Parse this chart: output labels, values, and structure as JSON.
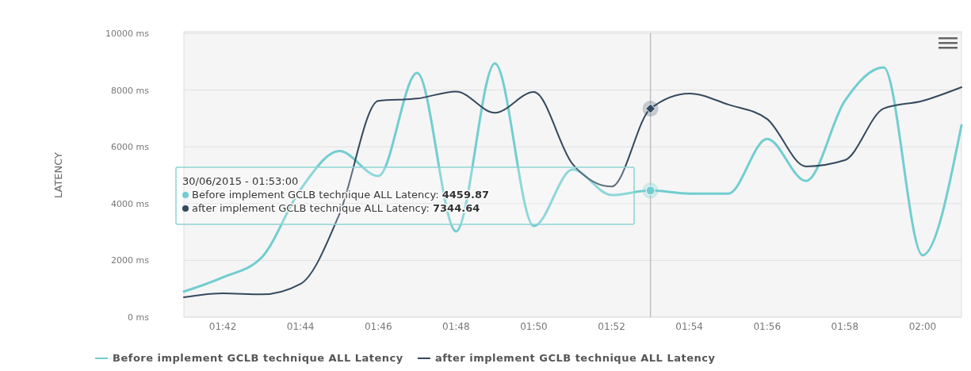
{
  "chart_data": {
    "type": "line",
    "ylabel": "LATENCY",
    "x": [
      "2015-06-30T01:41",
      "2015-06-30T01:42",
      "2015-06-30T01:43",
      "2015-06-30T01:44",
      "2015-06-30T01:45",
      "2015-06-30T01:46",
      "2015-06-30T01:47",
      "2015-06-30T01:48",
      "2015-06-30T01:49",
      "2015-06-30T01:50",
      "2015-06-30T01:51",
      "2015-06-30T01:52",
      "2015-06-30T01:53",
      "2015-06-30T01:54",
      "2015-06-30T01:55",
      "2015-06-30T01:56",
      "2015-06-30T01:57",
      "2015-06-30T01:58",
      "2015-06-30T01:59",
      "2015-06-30T02:00",
      "2015-06-30T02:01"
    ],
    "series": [
      {
        "name": "Before implement GCLB technique ALL Latency",
        "color": "#72cdd0",
        "values": [
          900,
          1400,
          2100,
          4500,
          5850,
          4970,
          8600,
          3020,
          8940,
          3210,
          5200,
          4300,
          4459.87,
          4350,
          4350,
          6280,
          4800,
          7620,
          8800,
          2180,
          6760
        ]
      },
      {
        "name": "after implement GCLB technique ALL Latency",
        "color": "#34495e",
        "values": [
          700,
          840,
          800,
          1170,
          3630,
          7620,
          7700,
          7950,
          7200,
          7930,
          5390,
          4600,
          7344.64,
          7880,
          7490,
          6980,
          5310,
          5530,
          7350,
          7620,
          8100
        ]
      }
    ],
    "xlim": [
      "2015-06-30T01:41",
      "2015-06-30T02:01"
    ],
    "xticks": [
      {
        "value": "2015-06-30T01:42",
        "label": "01:42"
      },
      {
        "value": "2015-06-30T01:44",
        "label": "01:44"
      },
      {
        "value": "2015-06-30T01:46",
        "label": "01:46"
      },
      {
        "value": "2015-06-30T01:48",
        "label": "01:48"
      },
      {
        "value": "2015-06-30T01:50",
        "label": "01:50"
      },
      {
        "value": "2015-06-30T01:52",
        "label": "01:52"
      },
      {
        "value": "2015-06-30T01:54",
        "label": "01:54"
      },
      {
        "value": "2015-06-30T01:56",
        "label": "01:56"
      },
      {
        "value": "2015-06-30T01:58",
        "label": "01:58"
      },
      {
        "value": "2015-06-30T02:00",
        "label": "02:00"
      }
    ],
    "ylim": [
      0,
      10000
    ],
    "yticks": [
      {
        "value": 0,
        "label": "0 ms"
      },
      {
        "value": 2000,
        "label": "2000 ms"
      },
      {
        "value": 4000,
        "label": "4000 ms"
      },
      {
        "value": 6000,
        "label": "6000 ms"
      },
      {
        "value": 8000,
        "label": "8000 ms"
      },
      {
        "value": 10000,
        "label": "10000 ms"
      }
    ],
    "ref_lines": [
      {
        "axis": "x",
        "value": "2015-06-30T01:53",
        "color": "#c0c0c0"
      }
    ],
    "annotations": [
      "30/06/2015 - 01:53:00",
      "Before implement GCLB technique ALL Latency: 4459.87",
      "after implement GCLB technique ALL Latency: 7344.64"
    ],
    "grid": "y",
    "legend": "bottom",
    "marker": "none",
    "line_style": "solid"
  }
}
